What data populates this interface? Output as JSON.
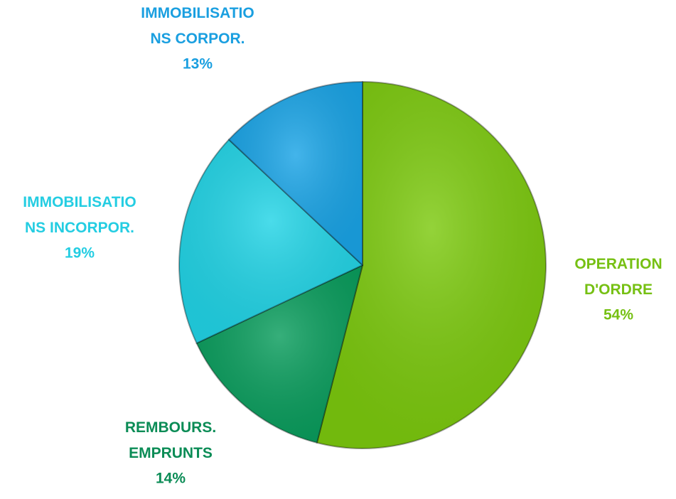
{
  "chart_data": {
    "type": "pie",
    "categories": [
      "OPERATION D'ORDRE",
      "REMBOURS. EMPRUNTS",
      "IMMOBILISATIONS INCORPOR.",
      "IMMOBILISATIONS CORPOR."
    ],
    "values": [
      54,
      14,
      19,
      13
    ],
    "value_labels": [
      "54%",
      "14%",
      "19%",
      "13%"
    ],
    "colors": [
      "#7cc90e",
      "#0a9d5d",
      "#22d4e6",
      "#1aa4e6"
    ],
    "label_colors": [
      "#76c013",
      "#0b8c56",
      "#24cde2",
      "#1a9fe0"
    ]
  }
}
